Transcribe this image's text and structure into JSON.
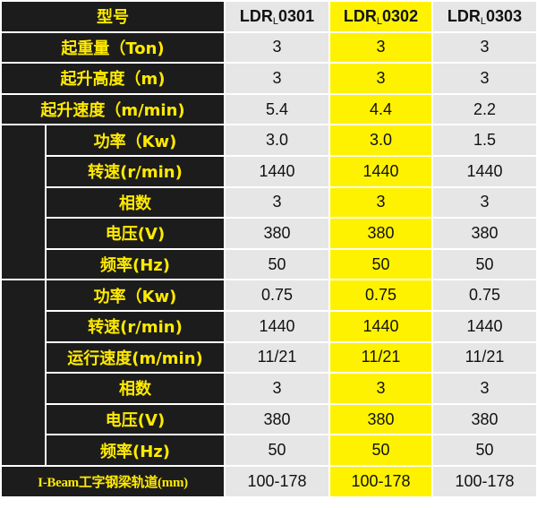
{
  "header": {
    "label": "型号",
    "models": [
      {
        "base": "LDR",
        "sub": "L",
        "num": "0301"
      },
      {
        "base": "LDR",
        "sub": "L",
        "num": "0302"
      },
      {
        "base": "LDR",
        "sub": "L",
        "num": "0303"
      }
    ]
  },
  "top_rows": [
    {
      "label": "起重量（Ton)",
      "values": [
        "3",
        "3",
        "3"
      ]
    },
    {
      "label": "起升高度（m)",
      "values": [
        "3",
        "3",
        "3"
      ]
    },
    {
      "label": "起升速度（m/min)",
      "values": [
        "5.4",
        "4.4",
        "2.2"
      ]
    }
  ],
  "group1_rows": [
    {
      "label": "功率（Kw)",
      "values": [
        "3.0",
        "3.0",
        "1.5"
      ]
    },
    {
      "label": "转速(r/min)",
      "values": [
        "1440",
        "1440",
        "1440"
      ]
    },
    {
      "label": "相数",
      "values": [
        "3",
        "3",
        "3"
      ]
    },
    {
      "label": "电压(V)",
      "values": [
        "380",
        "380",
        "380"
      ]
    },
    {
      "label": "频率(Hz)",
      "values": [
        "50",
        "50",
        "50"
      ]
    }
  ],
  "group2_rows": [
    {
      "label": "功率（Kw)",
      "values": [
        "0.75",
        "0.75",
        "0.75"
      ]
    },
    {
      "label": "转速(r/min)",
      "values": [
        "1440",
        "1440",
        "1440"
      ]
    },
    {
      "label": "运行速度(m/min)",
      "values": [
        "11/21",
        "11/21",
        "11/21"
      ]
    },
    {
      "label": "相数",
      "values": [
        "3",
        "3",
        "3"
      ]
    },
    {
      "label": "电压(V)",
      "values": [
        "380",
        "380",
        "380"
      ]
    },
    {
      "label": "频率(Hz)",
      "values": [
        "50",
        "50",
        "50"
      ]
    }
  ],
  "bottom_row": {
    "label": "I-Beam工字钢梁轨道(mm)",
    "values": [
      "100-178",
      "100-178",
      "100-178"
    ]
  },
  "colors": {
    "label_bg": "#1c1c1c",
    "label_text": "#ffea00",
    "cell_bg": "#e6e6e6",
    "highlight": "#fff200"
  }
}
